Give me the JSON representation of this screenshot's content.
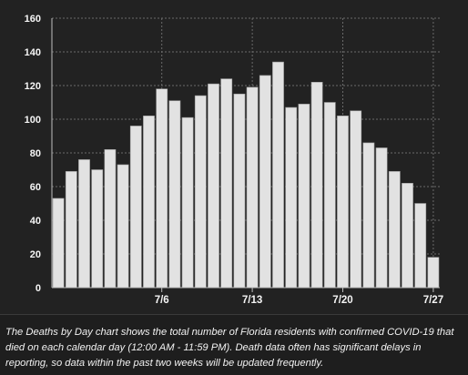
{
  "chart_data": {
    "type": "bar",
    "title": "",
    "xlabel": "",
    "ylabel": "",
    "ylim": [
      0,
      160
    ],
    "yticks": [
      0,
      20,
      40,
      60,
      80,
      100,
      120,
      140,
      160
    ],
    "x_tick_labels": [
      {
        "label": "7/6",
        "index": 8
      },
      {
        "label": "7/13",
        "index": 15
      },
      {
        "label": "7/20",
        "index": 22
      },
      {
        "label": "7/27",
        "index": 29
      }
    ],
    "values": [
      53,
      69,
      76,
      70,
      82,
      73,
      96,
      102,
      118,
      111,
      101,
      114,
      121,
      124,
      115,
      119,
      126,
      134,
      107,
      109,
      122,
      110,
      102,
      105,
      86,
      83,
      69,
      62,
      50,
      18
    ],
    "grid": true,
    "colors": {
      "bar": "#e2e2e2",
      "bar_edge": "#9a9a9a",
      "grid": "#6a6a6a",
      "tick_text": "#f5f5f5",
      "background": "#222222"
    }
  },
  "caption": "The Deaths by Day chart shows the total number of Florida residents with confirmed COVID-19 that died on each calendar day (12:00 AM - 11:59 PM). Death data often has significant delays in reporting, so data within the past two weeks will be updated frequently."
}
